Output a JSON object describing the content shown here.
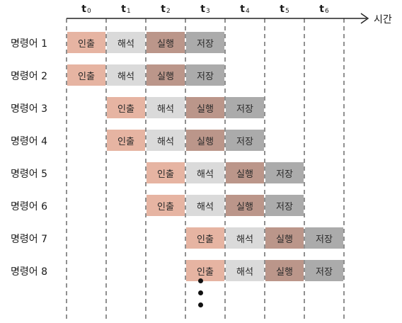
{
  "time_axis": {
    "label": "시간",
    "ticks": [
      {
        "base": "t",
        "sub": "0"
      },
      {
        "base": "t",
        "sub": "1"
      },
      {
        "base": "t",
        "sub": "2"
      },
      {
        "base": "t",
        "sub": "3"
      },
      {
        "base": "t",
        "sub": "4"
      },
      {
        "base": "t",
        "sub": "5"
      },
      {
        "base": "t",
        "sub": "6"
      }
    ]
  },
  "stage_labels": {
    "fetch": "인출",
    "decode": "해석",
    "execute": "실행",
    "store": "저장"
  },
  "stage_colors": {
    "fetch": "#e6b4a2",
    "decode": "#dadada",
    "execute": "#bb968a",
    "store": "#ababab"
  },
  "stage_order": [
    "fetch",
    "decode",
    "execute",
    "store"
  ],
  "instructions": [
    {
      "label": "명령어 1",
      "start": 0
    },
    {
      "label": "명령어 2",
      "start": 0
    },
    {
      "label": "명령어 3",
      "start": 1
    },
    {
      "label": "명령어 4",
      "start": 1
    },
    {
      "label": "명령어 5",
      "start": 2
    },
    {
      "label": "명령어 6",
      "start": 2
    },
    {
      "label": "명령어 7",
      "start": 3
    },
    {
      "label": "명령어 8",
      "start": 3
    }
  ]
}
